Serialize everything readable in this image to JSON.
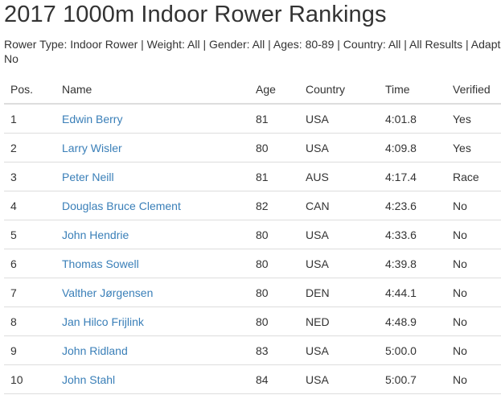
{
  "page": {
    "title": "2017 1000m Indoor Rower Rankings",
    "filters_line1": "Rower Type: Indoor Rower | Weight: All | Gender: All | Ages: 80-89 | Country: All | All Results | Adapti",
    "filters_line2": "No"
  },
  "table": {
    "headers": {
      "pos": "Pos.",
      "name": "Name",
      "age": "Age",
      "country": "Country",
      "time": "Time",
      "verified": "Verified"
    },
    "rows": [
      {
        "pos": "1",
        "name": "Edwin Berry",
        "age": "81",
        "country": "USA",
        "time": "4:01.8",
        "verified": "Yes"
      },
      {
        "pos": "2",
        "name": "Larry Wisler",
        "age": "80",
        "country": "USA",
        "time": "4:09.8",
        "verified": "Yes"
      },
      {
        "pos": "3",
        "name": "Peter Neill",
        "age": "81",
        "country": "AUS",
        "time": "4:17.4",
        "verified": "Race"
      },
      {
        "pos": "4",
        "name": "Douglas Bruce Clement",
        "age": "82",
        "country": "CAN",
        "time": "4:23.6",
        "verified": "No"
      },
      {
        "pos": "5",
        "name": "John Hendrie",
        "age": "80",
        "country": "USA",
        "time": "4:33.6",
        "verified": "No"
      },
      {
        "pos": "6",
        "name": "Thomas Sowell",
        "age": "80",
        "country": "USA",
        "time": "4:39.8",
        "verified": "No"
      },
      {
        "pos": "7",
        "name": "Valther Jørgensen",
        "age": "80",
        "country": "DEN",
        "time": "4:44.1",
        "verified": "No"
      },
      {
        "pos": "8",
        "name": "Jan Hilco Frijlink",
        "age": "80",
        "country": "NED",
        "time": "4:48.9",
        "verified": "No"
      },
      {
        "pos": "9",
        "name": "John Ridland",
        "age": "83",
        "country": "USA",
        "time": "5:00.0",
        "verified": "No"
      },
      {
        "pos": "10",
        "name": "John Stahl",
        "age": "84",
        "country": "USA",
        "time": "5:00.7",
        "verified": "No"
      }
    ]
  },
  "colors": {
    "link": "#3a7fb8",
    "text": "#333333",
    "border": "#dddddd"
  }
}
